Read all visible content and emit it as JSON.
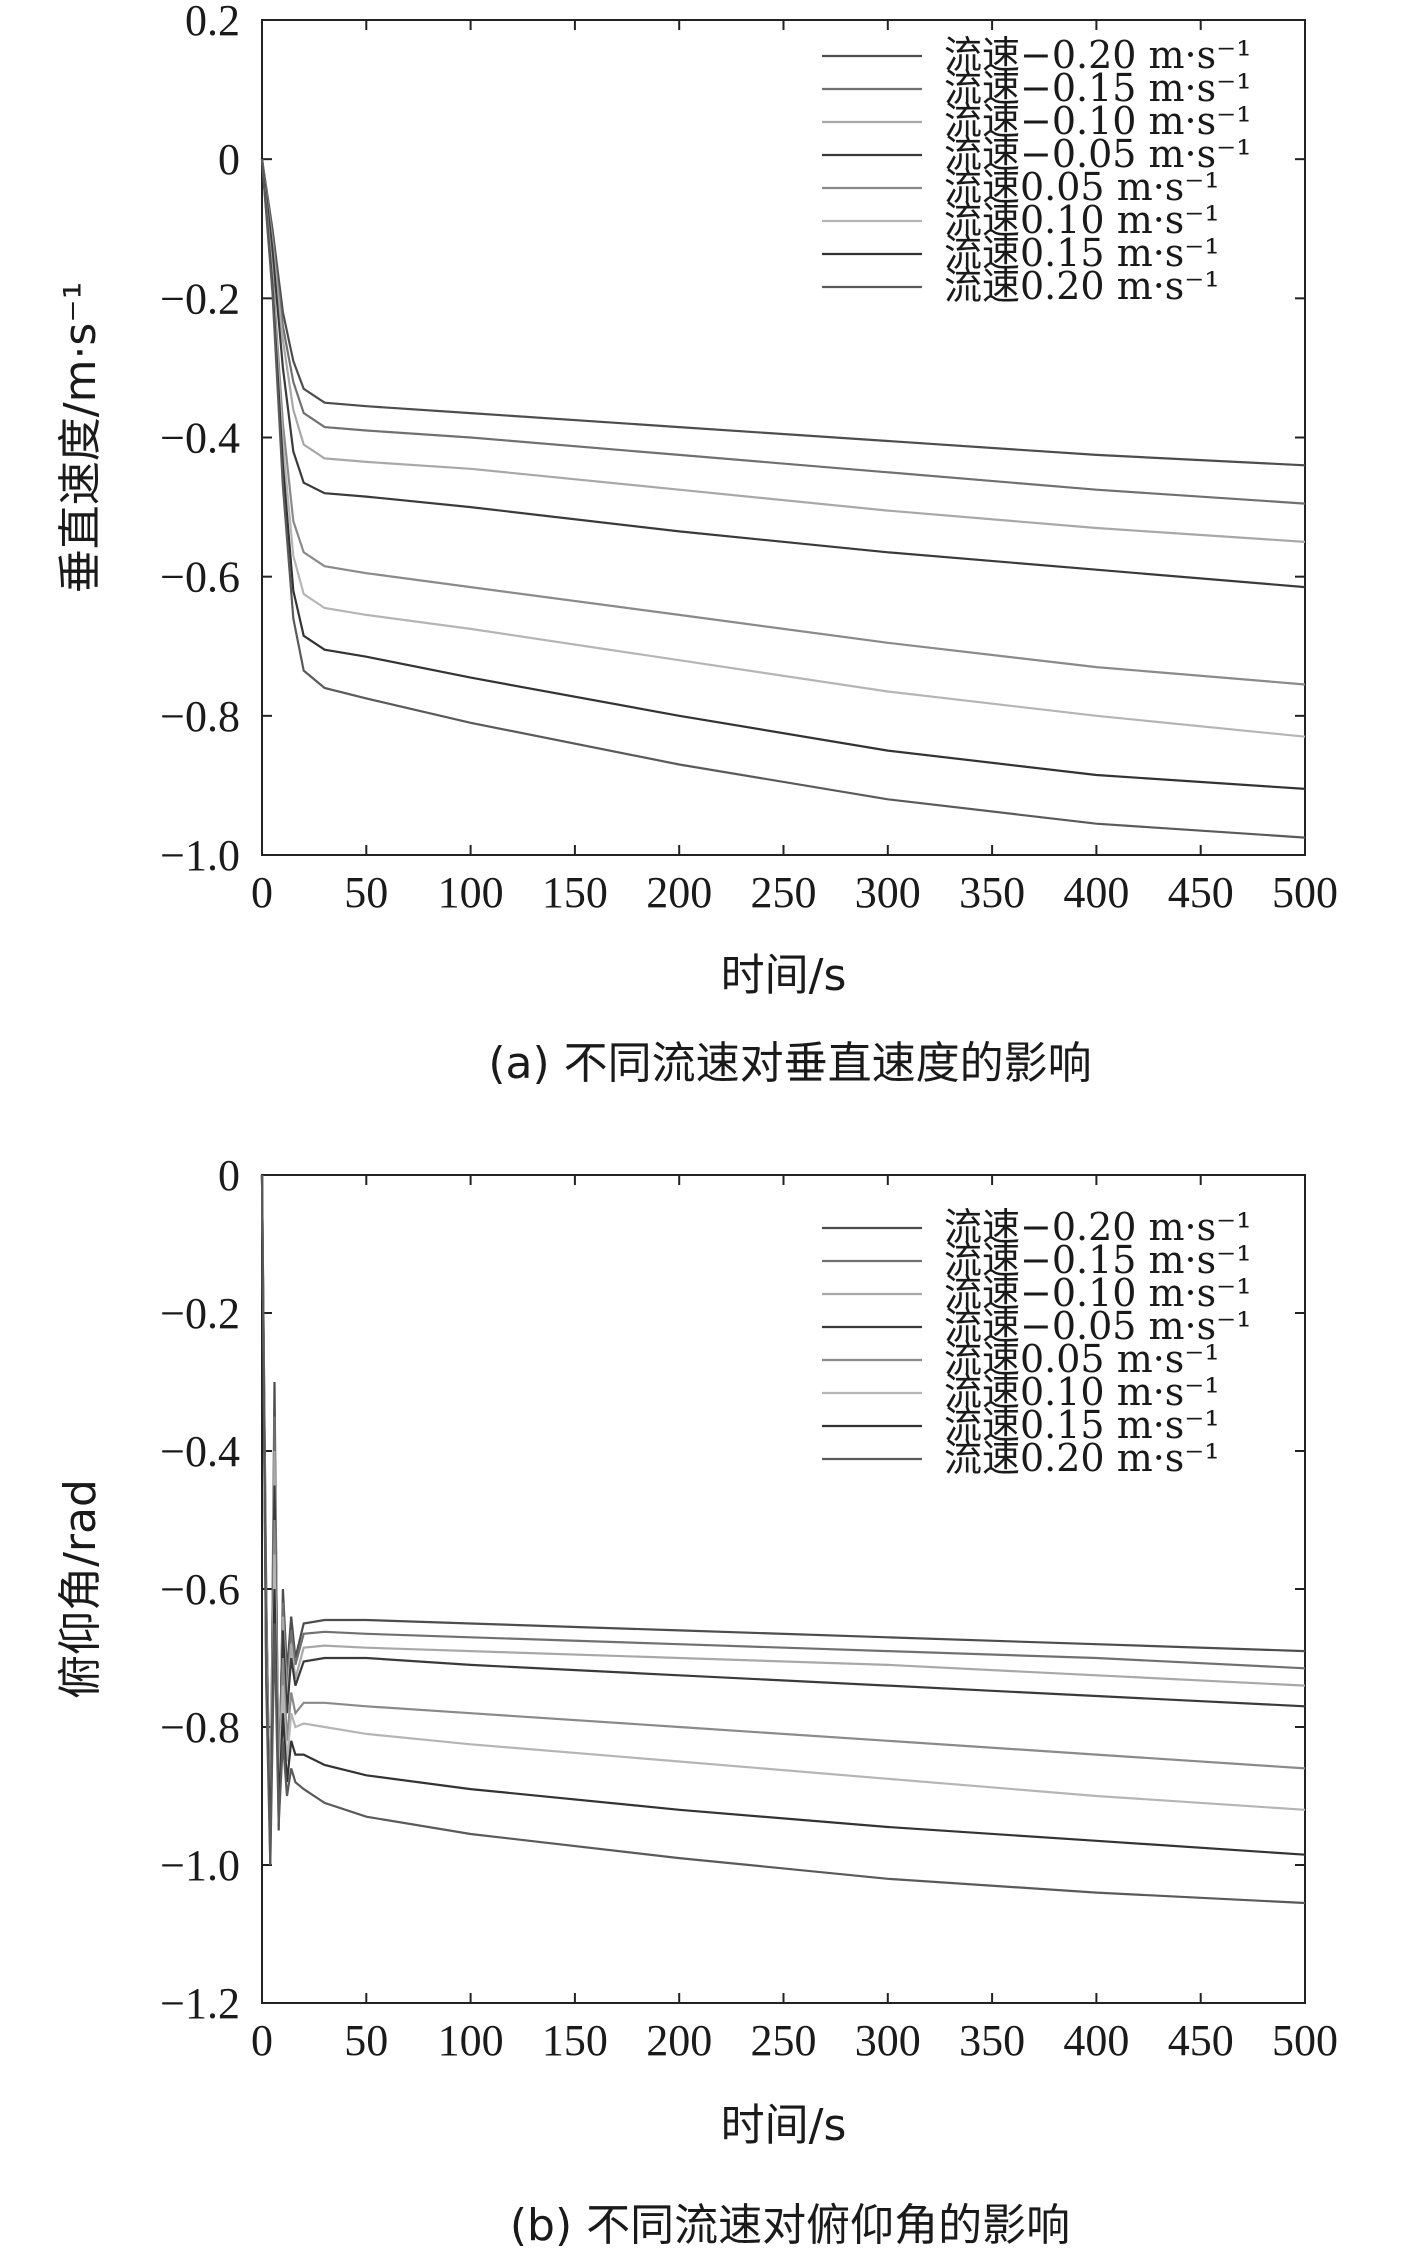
{
  "chart_data": [
    {
      "type": "line",
      "caption": "(a) 不同流速对垂直速度的影响",
      "xlabel": "时间/s",
      "ylabel": "垂直速度/m·s⁻¹",
      "xlim": [
        0,
        500
      ],
      "ylim": [
        -1.0,
        0.2
      ],
      "xticks": [
        "0",
        "50",
        "100",
        "150",
        "200",
        "250",
        "300",
        "350",
        "400",
        "450",
        "500"
      ],
      "yticks": [
        "0.2",
        "0",
        "−0.2",
        "−0.4",
        "−0.6",
        "−0.8",
        "−1.0"
      ],
      "ytick_values": [
        0.2,
        0,
        -0.2,
        -0.4,
        -0.6,
        -0.8,
        -1.0
      ],
      "grid": false,
      "legend_position": "top-right",
      "series": [
        {
          "name": "流速−0.20 m·s⁻¹",
          "color": "#4d4d4d",
          "x": [
            0,
            5,
            10,
            15,
            20,
            30,
            50,
            100,
            200,
            300,
            400,
            500
          ],
          "values": [
            0,
            -0.1,
            -0.22,
            -0.29,
            -0.33,
            -0.35,
            -0.355,
            -0.365,
            -0.385,
            -0.405,
            -0.425,
            -0.44
          ]
        },
        {
          "name": "流速−0.15 m·s⁻¹",
          "color": "#707070",
          "x": [
            0,
            5,
            10,
            15,
            20,
            30,
            50,
            100,
            200,
            300,
            400,
            500
          ],
          "values": [
            0,
            -0.11,
            -0.24,
            -0.32,
            -0.365,
            -0.385,
            -0.39,
            -0.4,
            -0.425,
            -0.45,
            -0.475,
            -0.495
          ]
        },
        {
          "name": "流速−0.10 m·s⁻¹",
          "color": "#a8a8a8",
          "x": [
            0,
            5,
            10,
            15,
            20,
            30,
            50,
            100,
            200,
            300,
            400,
            500
          ],
          "values": [
            0,
            -0.12,
            -0.26,
            -0.36,
            -0.41,
            -0.43,
            -0.435,
            -0.445,
            -0.475,
            -0.505,
            -0.53,
            -0.55
          ]
        },
        {
          "name": "流速−0.05 m·s⁻¹",
          "color": "#3a3a3a",
          "x": [
            0,
            5,
            10,
            15,
            20,
            30,
            50,
            100,
            200,
            300,
            400,
            500
          ],
          "values": [
            0,
            -0.13,
            -0.3,
            -0.42,
            -0.465,
            -0.48,
            -0.485,
            -0.5,
            -0.535,
            -0.565,
            -0.59,
            -0.615
          ]
        },
        {
          "name": "流速0.05 m·s⁻¹",
          "color": "#8a8a8a",
          "x": [
            0,
            5,
            10,
            15,
            20,
            30,
            50,
            100,
            200,
            300,
            400,
            500
          ],
          "values": [
            0,
            -0.16,
            -0.38,
            -0.52,
            -0.565,
            -0.585,
            -0.595,
            -0.615,
            -0.655,
            -0.695,
            -0.73,
            -0.755
          ]
        },
        {
          "name": "流速0.10 m·s⁻¹",
          "color": "#b5b5b5",
          "x": [
            0,
            5,
            10,
            15,
            20,
            30,
            50,
            100,
            200,
            300,
            400,
            500
          ],
          "values": [
            0,
            -0.17,
            -0.41,
            -0.57,
            -0.625,
            -0.645,
            -0.655,
            -0.675,
            -0.72,
            -0.765,
            -0.8,
            -0.83
          ]
        },
        {
          "name": "流速0.15 m·s⁻¹",
          "color": "#333333",
          "x": [
            0,
            5,
            10,
            15,
            20,
            30,
            50,
            100,
            200,
            300,
            400,
            500
          ],
          "values": [
            0,
            -0.18,
            -0.44,
            -0.62,
            -0.685,
            -0.705,
            -0.715,
            -0.745,
            -0.8,
            -0.85,
            -0.885,
            -0.905
          ]
        },
        {
          "name": "流速0.20 m·s⁻¹",
          "color": "#5a5a5a",
          "x": [
            0,
            5,
            10,
            15,
            20,
            30,
            50,
            100,
            200,
            300,
            400,
            500
          ],
          "values": [
            0,
            -0.19,
            -0.47,
            -0.66,
            -0.735,
            -0.76,
            -0.775,
            -0.81,
            -0.87,
            -0.92,
            -0.955,
            -0.975
          ]
        }
      ]
    },
    {
      "type": "line",
      "caption": "(b) 不同流速对俯仰角的影响",
      "xlabel": "时间/s",
      "ylabel": "俯仰角/rad",
      "xlim": [
        0,
        500
      ],
      "ylim": [
        -1.2,
        0
      ],
      "xticks": [
        "0",
        "50",
        "100",
        "150",
        "200",
        "250",
        "300",
        "350",
        "400",
        "450",
        "500"
      ],
      "yticks": [
        "0",
        "−0.2",
        "−0.4",
        "−0.6",
        "−0.8",
        "−1.0",
        "−1.2"
      ],
      "ytick_values": [
        0,
        -0.2,
        -0.4,
        -0.6,
        -0.8,
        -1.0,
        -1.2
      ],
      "grid": false,
      "legend_position": "top-right",
      "series": [
        {
          "name": "流速−0.20 m·s⁻¹",
          "color": "#4d4d4d",
          "x": [
            0,
            2,
            4,
            6,
            8,
            10,
            12,
            14,
            16,
            20,
            30,
            50,
            100,
            200,
            300,
            400,
            500
          ],
          "values": [
            0,
            -0.6,
            -1.0,
            -0.3,
            -0.95,
            -0.6,
            -0.72,
            -0.64,
            -0.7,
            -0.65,
            -0.645,
            -0.645,
            -0.65,
            -0.66,
            -0.67,
            -0.68,
            -0.69
          ]
        },
        {
          "name": "流速−0.15 m·s⁻¹",
          "color": "#707070",
          "x": [
            0,
            2,
            4,
            6,
            8,
            10,
            12,
            14,
            16,
            20,
            30,
            50,
            100,
            200,
            300,
            400,
            500
          ],
          "values": [
            0,
            -0.62,
            -0.98,
            -0.35,
            -0.92,
            -0.62,
            -0.74,
            -0.66,
            -0.71,
            -0.665,
            -0.662,
            -0.665,
            -0.67,
            -0.68,
            -0.69,
            -0.7,
            -0.715
          ]
        },
        {
          "name": "流速−0.10 m·s⁻¹",
          "color": "#a8a8a8",
          "x": [
            0,
            2,
            4,
            6,
            8,
            10,
            12,
            14,
            16,
            20,
            30,
            50,
            100,
            200,
            300,
            400,
            500
          ],
          "values": [
            0,
            -0.64,
            -0.96,
            -0.4,
            -0.9,
            -0.64,
            -0.76,
            -0.68,
            -0.73,
            -0.685,
            -0.682,
            -0.685,
            -0.69,
            -0.7,
            -0.71,
            -0.725,
            -0.74
          ]
        },
        {
          "name": "流速−0.05 m·s⁻¹",
          "color": "#3a3a3a",
          "x": [
            0,
            2,
            4,
            6,
            8,
            10,
            12,
            14,
            16,
            20,
            30,
            50,
            100,
            200,
            300,
            400,
            500
          ],
          "values": [
            0,
            -0.66,
            -0.94,
            -0.45,
            -0.88,
            -0.66,
            -0.78,
            -0.7,
            -0.74,
            -0.705,
            -0.7,
            -0.7,
            -0.71,
            -0.725,
            -0.74,
            -0.755,
            -0.77
          ]
        },
        {
          "name": "流速0.05 m·s⁻¹",
          "color": "#8a8a8a",
          "x": [
            0,
            2,
            4,
            6,
            8,
            10,
            12,
            14,
            16,
            20,
            30,
            50,
            100,
            200,
            300,
            400,
            500
          ],
          "values": [
            0,
            -0.68,
            -0.93,
            -0.5,
            -0.87,
            -0.7,
            -0.82,
            -0.75,
            -0.78,
            -0.765,
            -0.765,
            -0.77,
            -0.78,
            -0.8,
            -0.82,
            -0.84,
            -0.86
          ]
        },
        {
          "name": "流速0.10 m·s⁻¹",
          "color": "#b5b5b5",
          "x": [
            0,
            2,
            4,
            6,
            8,
            10,
            12,
            14,
            16,
            20,
            30,
            50,
            100,
            200,
            300,
            400,
            500
          ],
          "values": [
            0,
            -0.7,
            -0.95,
            -0.55,
            -0.9,
            -0.74,
            -0.85,
            -0.78,
            -0.8,
            -0.795,
            -0.8,
            -0.81,
            -0.825,
            -0.85,
            -0.875,
            -0.9,
            -0.92
          ]
        },
        {
          "name": "流速0.15 m·s⁻¹",
          "color": "#333333",
          "x": [
            0,
            2,
            4,
            6,
            8,
            10,
            12,
            14,
            16,
            20,
            30,
            50,
            100,
            200,
            300,
            400,
            500
          ],
          "values": [
            0,
            -0.72,
            -0.97,
            -0.6,
            -0.92,
            -0.78,
            -0.88,
            -0.82,
            -0.84,
            -0.84,
            -0.855,
            -0.87,
            -0.89,
            -0.92,
            -0.945,
            -0.965,
            -0.985
          ]
        },
        {
          "name": "流速0.20 m·s⁻¹",
          "color": "#5a5a5a",
          "x": [
            0,
            2,
            4,
            6,
            8,
            10,
            12,
            14,
            16,
            20,
            30,
            50,
            100,
            200,
            300,
            400,
            500
          ],
          "values": [
            0,
            -0.74,
            -1.0,
            -0.65,
            -0.94,
            -0.82,
            -0.9,
            -0.86,
            -0.88,
            -0.89,
            -0.91,
            -0.93,
            -0.955,
            -0.99,
            -1.02,
            -1.04,
            -1.055
          ]
        }
      ]
    }
  ]
}
